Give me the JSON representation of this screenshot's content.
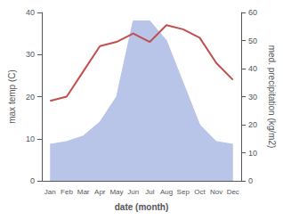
{
  "chart_data": {
    "type": "line",
    "xlabel": "date (month)",
    "ylabel": "max temp (C)",
    "y2label": "med. precipitation (kg/m2)",
    "categories": [
      "Jan",
      "Feb",
      "Mar",
      "Apr",
      "May",
      "Jun",
      "Jul",
      "Aug",
      "Sep",
      "Oct",
      "Nov",
      "Dec"
    ],
    "series": [
      {
        "type": "area",
        "color": "#b8c4e8",
        "axis": "y2",
        "values": [
          13,
          14,
          16,
          21,
          30,
          57,
          57,
          50,
          35,
          20,
          14,
          13
        ]
      },
      {
        "type": "line",
        "color": "#c0504d",
        "values": [
          19,
          20,
          26,
          32,
          33,
          35,
          33,
          37,
          36,
          34,
          28,
          24
        ]
      }
    ],
    "ylim": [
      0,
      40
    ],
    "yticks": [
      0,
      10,
      20,
      30,
      40
    ],
    "y2lim": [
      0,
      60
    ],
    "y2ticks": [
      0,
      10,
      20,
      30,
      40,
      50,
      60
    ],
    "grid": false
  }
}
